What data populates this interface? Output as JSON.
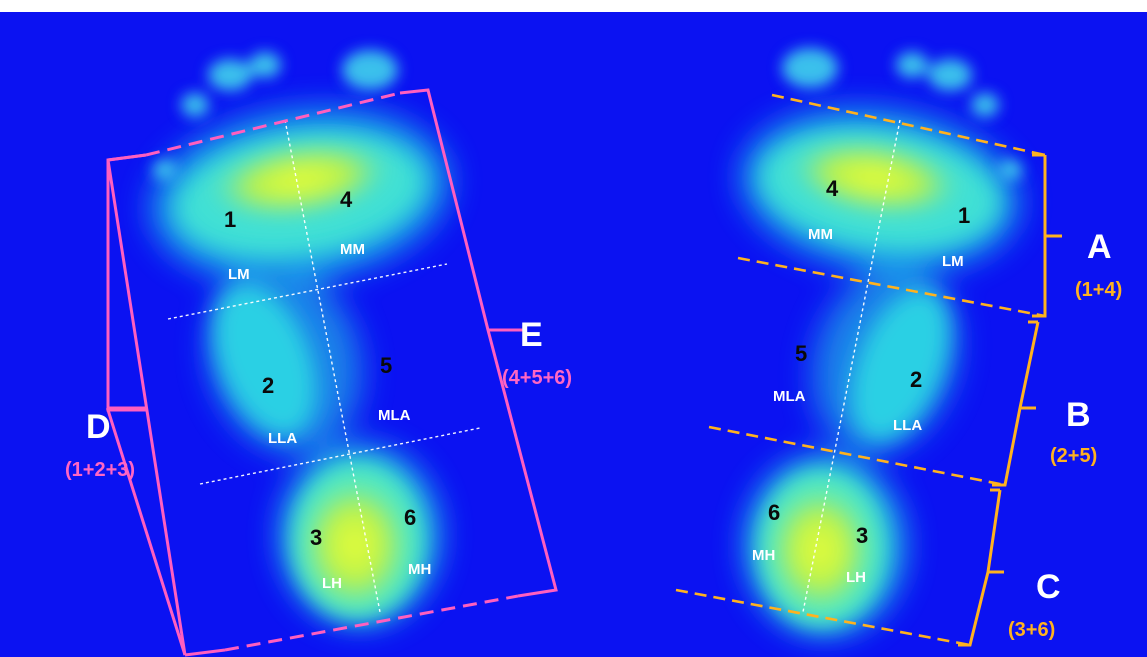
{
  "colors": {
    "background": "#0b12f2",
    "pressure_high": "#c8f53a",
    "pressure_mid": "#27e0d8",
    "left_bracket": "#ff5fbf",
    "right_bracket": "#ffb21f",
    "divider": "#ffffff"
  },
  "left_foot": {
    "regions": [
      {
        "num": "1",
        "abbr": "LM"
      },
      {
        "num": "4",
        "abbr": "MM"
      },
      {
        "num": "2",
        "abbr": "LLA"
      },
      {
        "num": "5",
        "abbr": "MLA"
      },
      {
        "num": "3",
        "abbr": "LH"
      },
      {
        "num": "6",
        "abbr": "MH"
      }
    ],
    "groups": [
      {
        "letter": "D",
        "formula": "(1+2+3)"
      },
      {
        "letter": "E",
        "formula": "(4+5+6)"
      }
    ]
  },
  "right_foot": {
    "regions": [
      {
        "num": "4",
        "abbr": "MM"
      },
      {
        "num": "1",
        "abbr": "LM"
      },
      {
        "num": "5",
        "abbr": "MLA"
      },
      {
        "num": "2",
        "abbr": "LLA"
      },
      {
        "num": "6",
        "abbr": "MH"
      },
      {
        "num": "3",
        "abbr": "LH"
      }
    ],
    "groups": [
      {
        "letter": "A",
        "formula": "(1+4)"
      },
      {
        "letter": "B",
        "formula": "(2+5)"
      },
      {
        "letter": "C",
        "formula": "(3+6)"
      }
    ]
  }
}
